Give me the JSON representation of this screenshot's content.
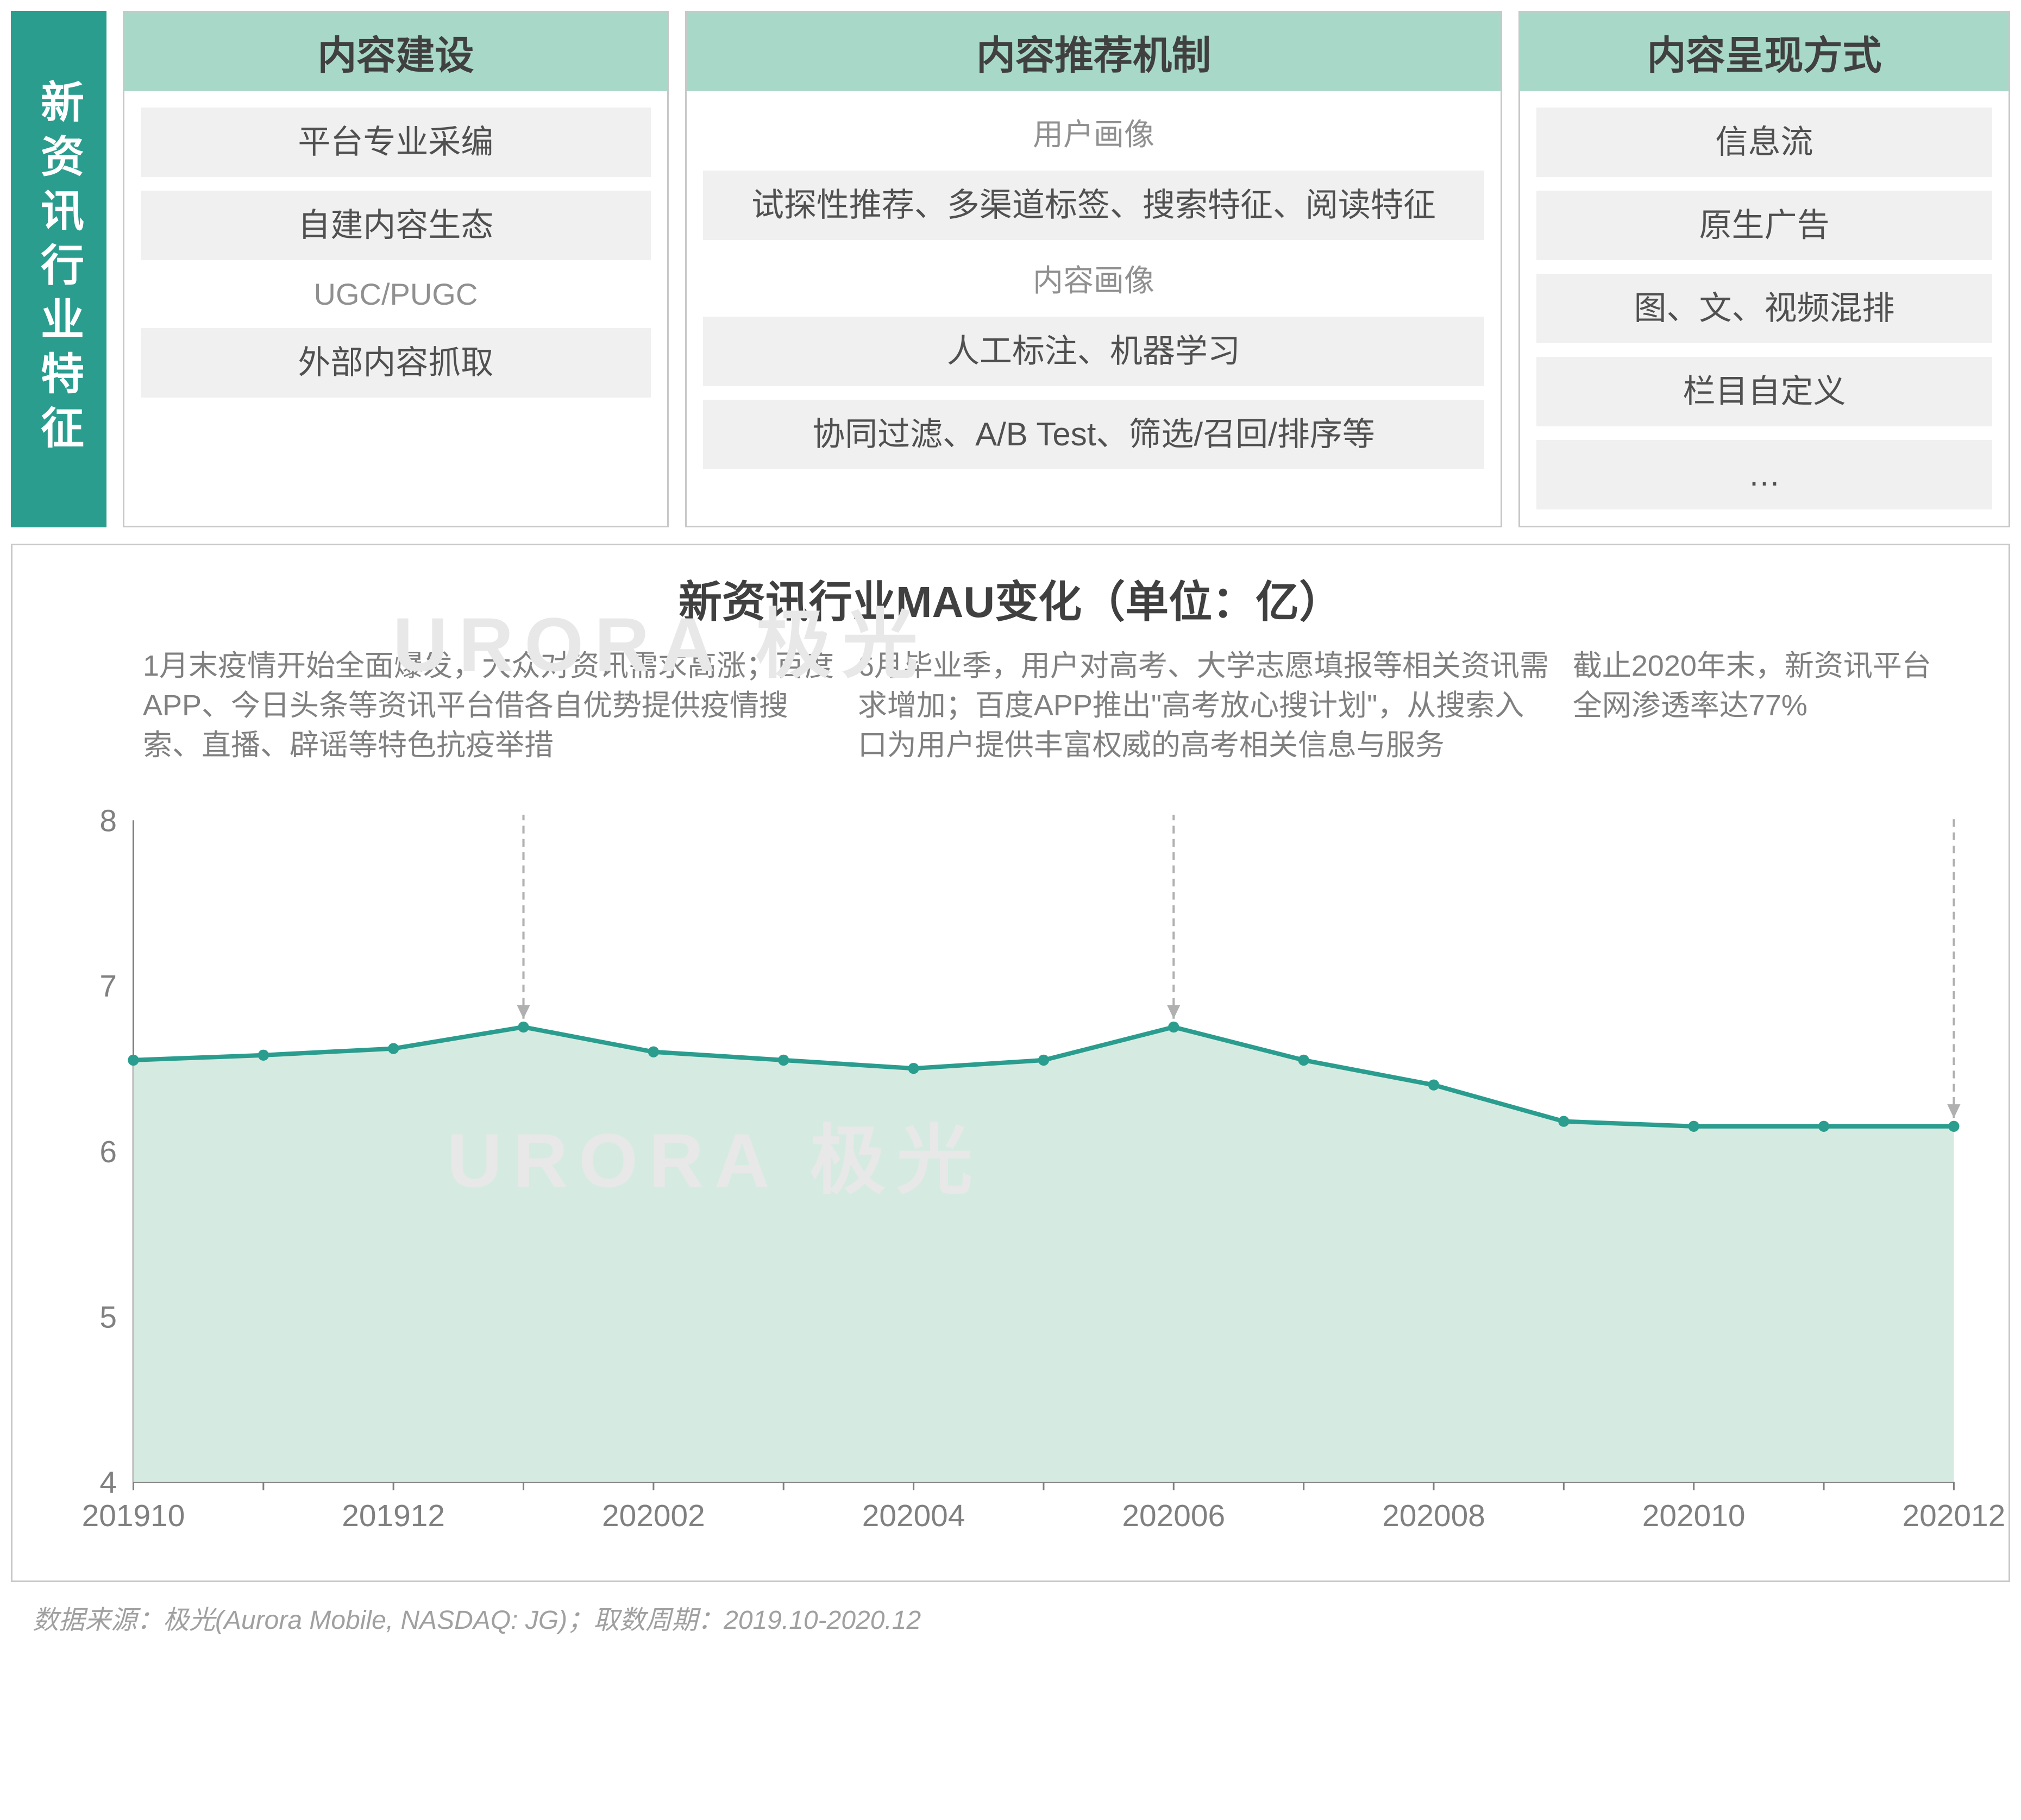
{
  "sidebar_label": "新资讯行业特征",
  "categories": [
    {
      "header": "内容建设",
      "items": [
        {
          "type": "box",
          "text": "平台专业采编"
        },
        {
          "type": "box",
          "text": "自建内容生态"
        },
        {
          "type": "sub",
          "text": "UGC/PUGC"
        },
        {
          "type": "box",
          "text": "外部内容抓取"
        }
      ]
    },
    {
      "header": "内容推荐机制",
      "items": [
        {
          "type": "sub",
          "text": "用户画像"
        },
        {
          "type": "box",
          "text": "试探性推荐、多渠道标签、搜索特征、阅读特征"
        },
        {
          "type": "sub",
          "text": "内容画像"
        },
        {
          "type": "box",
          "text": "人工标注、机器学习"
        },
        {
          "type": "box",
          "text": "协同过滤、A/B Test、筛选/召回/排序等"
        }
      ]
    },
    {
      "header": "内容呈现方式",
      "items": [
        {
          "type": "box",
          "text": "信息流"
        },
        {
          "type": "box",
          "text": "原生广告"
        },
        {
          "type": "box",
          "text": "图、文、视频混排"
        },
        {
          "type": "box",
          "text": "栏目自定义"
        },
        {
          "type": "box",
          "text": "…"
        }
      ]
    }
  ],
  "chart": {
    "title": "新资讯行业MAU变化（单位：亿）",
    "type": "area",
    "x_labels": [
      "201910",
      "201912",
      "202002",
      "202004",
      "202006",
      "202008",
      "202010",
      "202012"
    ],
    "x_categories": [
      "201910",
      "201911",
      "201912",
      "202001",
      "202002",
      "202003",
      "202004",
      "202005",
      "202006",
      "202007",
      "202008",
      "202009",
      "202010",
      "202011",
      "202012"
    ],
    "values": [
      6.55,
      6.58,
      6.62,
      6.75,
      6.6,
      6.55,
      6.5,
      6.55,
      6.75,
      6.55,
      6.4,
      6.18,
      6.15,
      6.15,
      6.15
    ],
    "ylim": [
      4,
      8
    ],
    "ytick_step": 1,
    "yticks": [
      4,
      5,
      6,
      7,
      8
    ],
    "line_color": "#2a9d8f",
    "fill_color": "#d5ebe1",
    "marker_color": "#2a9d8f",
    "marker_radius": 10,
    "line_width": 8,
    "axis_color": "#808080",
    "text_color": "#808080",
    "tick_fontsize": 56,
    "annotation_color": "#808080",
    "annotation_line_color": "#b0b0b0",
    "background_color": "#ffffff",
    "annotations": [
      {
        "text": "1月末疫情开始全面爆发，大众对资讯需求高涨；百度APP、今日头条等资讯平台借各自优势提供疫情搜索、直播、辟谣等特色抗疫举措",
        "x_index": 3
      },
      {
        "text": "6月毕业季，用户对高考、大学志愿填报等相关资讯需求增加；百度APP推出\"高考放心搜计划\"，从搜索入口为用户提供丰富权威的高考相关信息与服务",
        "x_index": 8
      },
      {
        "text": "截止2020年末，新资讯平台全网渗透率达77%",
        "x_index": 14
      }
    ]
  },
  "footer": "数据来源：极光(Aurora Mobile, NASDAQ: JG)；取数周期：2019.10-2020.12",
  "watermark": "URORA 极光",
  "colors": {
    "teal": "#2a9d8f",
    "header_bg": "#a8d8c8",
    "box_bg": "#f0f0f0",
    "border": "#c8c8c8",
    "text_dark": "#404040",
    "text_mid": "#505050",
    "text_light": "#808080",
    "text_lighter": "#a0a0a0"
  }
}
